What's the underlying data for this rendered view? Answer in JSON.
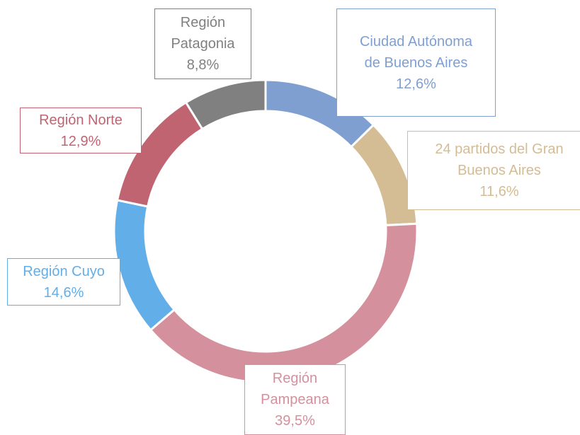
{
  "chart_data": {
    "type": "donut",
    "categories": [
      "Ciudad Autónoma de Buenos Aires",
      "24 partidos del Gran Buenos Aires",
      "Región Pampeana",
      "Región Cuyo",
      "Región Norte",
      "Región Patagonia"
    ],
    "values": [
      12.6,
      11.6,
      39.5,
      14.6,
      12.9,
      8.8
    ],
    "value_labels": [
      "12,6%",
      "11,6%",
      "39,5%",
      "14,6%",
      "12,9%",
      "8,8%"
    ],
    "colors": [
      "#7f9fd0",
      "#d4bc94",
      "#d4909c",
      "#62aee8",
      "#c06472",
      "#808080"
    ]
  }
}
